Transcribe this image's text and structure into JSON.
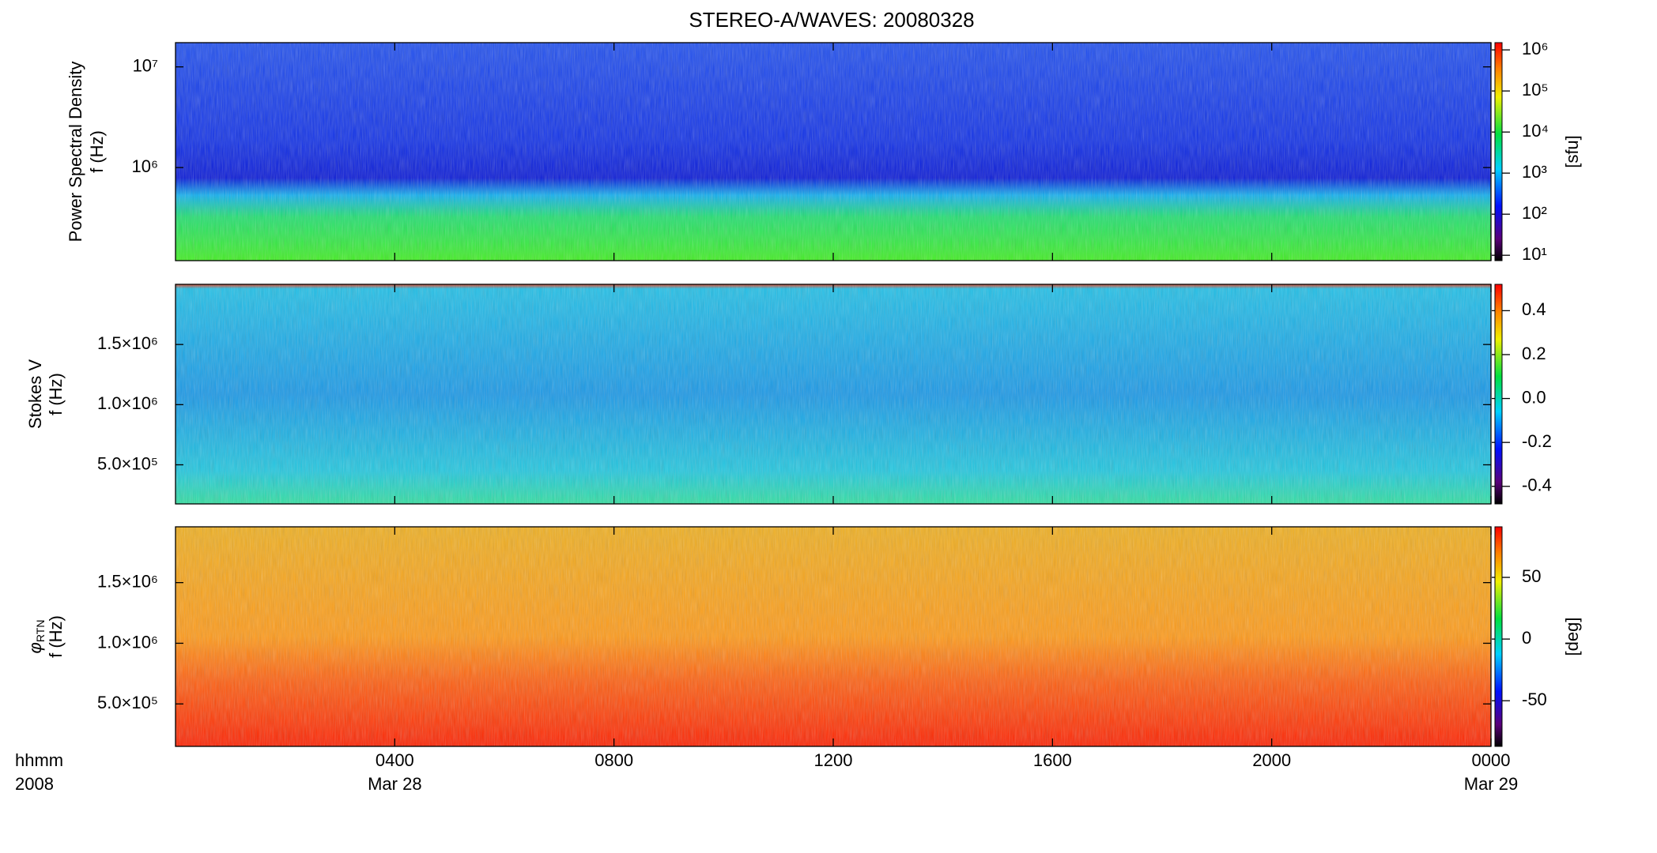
{
  "title": "STEREO-A/WAVES: 20080328",
  "chart_data": [
    {
      "type": "spectrogram",
      "ylabel": [
        "Power Spectral Density",
        "f (Hz)"
      ],
      "yscale": "log",
      "ylim": [
        119000,
        17400000
      ],
      "yticks": [
        {
          "value": 1000000,
          "label": "10⁶"
        },
        {
          "value": 10000000,
          "label": "10⁷"
        }
      ],
      "colorbar": {
        "scale": "log",
        "clim": [
          7.4,
          1500000
        ],
        "label": "[sfu]",
        "ticks": [
          {
            "value": 10,
            "label": "10¹"
          },
          {
            "value": 100,
            "label": "10²"
          },
          {
            "value": 1000,
            "label": "10³"
          },
          {
            "value": 10000,
            "label": "10⁴"
          },
          {
            "value": 100000,
            "label": "10⁵"
          },
          {
            "value": 1000000,
            "label": "10⁶"
          }
        ]
      }
    },
    {
      "type": "spectrogram",
      "ylabel": [
        "Stokes V",
        "f (Hz)"
      ],
      "yscale": "linear",
      "ylim": [
        175000,
        2000000
      ],
      "yticks": [
        {
          "value": 500000,
          "label": "5.0×10⁵"
        },
        {
          "value": 1000000,
          "label": "1.0×10⁶"
        },
        {
          "value": 1500000,
          "label": "1.5×10⁶"
        }
      ],
      "colorbar": {
        "scale": "linear",
        "clim": [
          -0.48,
          0.52
        ],
        "ticks": [
          -0.4,
          -0.2,
          {
            "value": 0,
            "label": "0.0"
          },
          0.2,
          0.4
        ]
      }
    },
    {
      "type": "spectrogram",
      "ylabel": [
        {
          "text": "φ",
          "sub": "RTN"
        },
        "f (Hz)"
      ],
      "yscale": "linear",
      "ylim": [
        150000,
        1960000
      ],
      "yticks": [
        {
          "value": 500000,
          "label": "5.0×10⁵"
        },
        {
          "value": 1000000,
          "label": "1.0×10⁶"
        },
        {
          "value": 1500000,
          "label": "1.5×10⁶"
        }
      ],
      "colorbar": {
        "scale": "linear",
        "clim": [
          -87,
          91
        ],
        "label": "[deg]",
        "ticks": [
          -50,
          0,
          50
        ]
      },
      "x_title": [
        "hhmm",
        "2008"
      ],
      "xlim": [
        0,
        24
      ],
      "xticks": [
        {
          "value": 4,
          "label": "0400",
          "date": "Mar 28"
        },
        {
          "value": 8,
          "label": "0800"
        },
        {
          "value": 12,
          "label": "1200"
        },
        {
          "value": 16,
          "label": "1600"
        },
        {
          "value": 20,
          "label": "2000"
        },
        {
          "value": 24,
          "label": "0000",
          "date": "Mar 29"
        }
      ]
    }
  ]
}
